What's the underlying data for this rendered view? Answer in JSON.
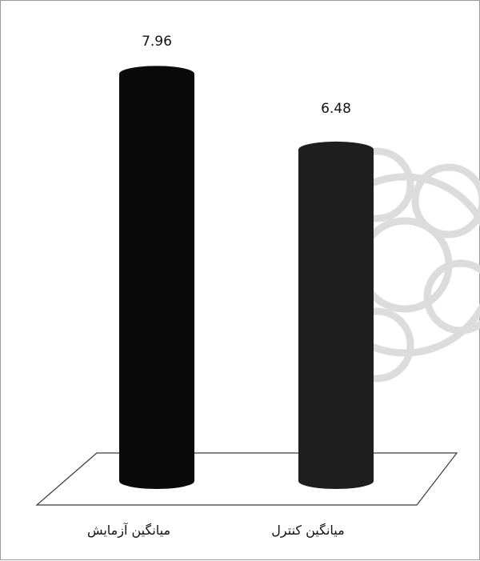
{
  "chart_data": {
    "type": "bar",
    "style": "3d-cylinder",
    "categories": [
      "میانگین آزمایش",
      "میانگین کنترل"
    ],
    "values": [
      7.96,
      6.48
    ],
    "value_labels": [
      "7.96",
      "6.48"
    ],
    "ylim": [
      0,
      9
    ],
    "grid": false,
    "legend": "none",
    "colors": [
      "#0a0a0a",
      "#1e1e1e"
    ],
    "floor_color": "#3a3a3a",
    "watermark_color": "#dcdcdc"
  }
}
